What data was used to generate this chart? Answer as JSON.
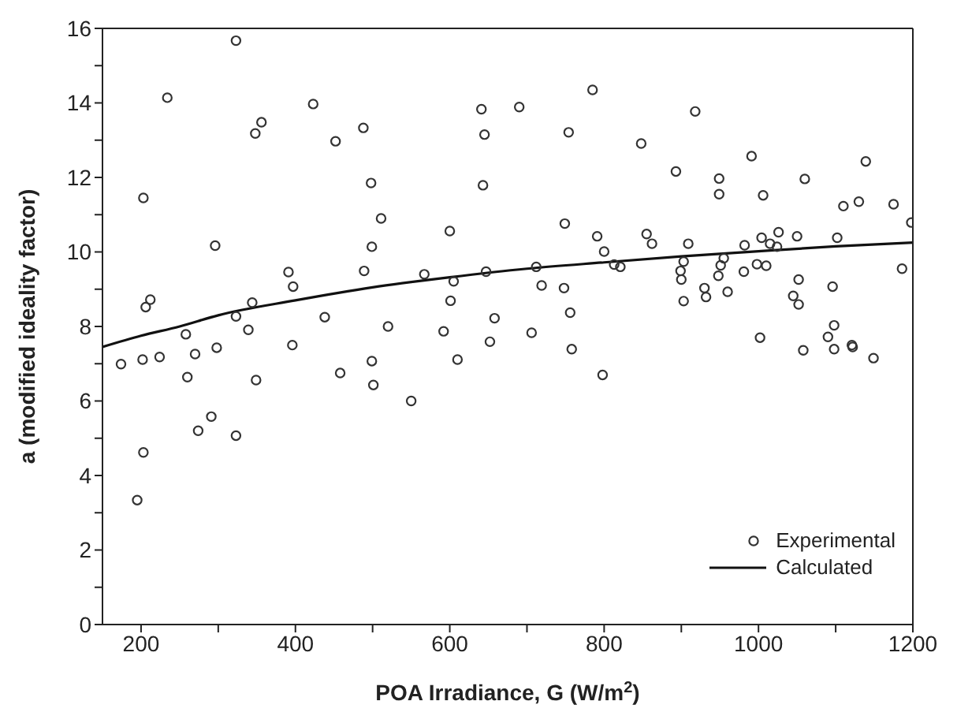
{
  "chart_data": {
    "type": "scatter",
    "xlabel": "POA Irradiance, G (W/m$^{2}$)",
    "ylabel": "a (modified ideality factor)",
    "xlim": [
      150,
      1200
    ],
    "ylim": [
      0,
      16
    ],
    "xticks": [
      200,
      {
        "value": 300,
        "label": null
      },
      400,
      {
        "value": 500,
        "label": null
      },
      600,
      {
        "value": 700,
        "label": null
      },
      800,
      {
        "value": 900,
        "label": null
      },
      1000,
      {
        "value": 1100,
        "label": null
      },
      1200
    ],
    "yticks": [
      0,
      {
        "value": 1,
        "label": null
      },
      2,
      {
        "value": 3,
        "label": null
      },
      4,
      {
        "value": 5,
        "label": null
      },
      6,
      {
        "value": 7,
        "label": null
      },
      8,
      {
        "value": 9,
        "label": null
      },
      10,
      {
        "value": 11,
        "label": null
      },
      12,
      {
        "value": 13,
        "label": null
      },
      14,
      {
        "value": 15,
        "label": null
      },
      16
    ],
    "grid": false,
    "legend": "bottom right",
    "series": [
      {
        "name": "Experimental",
        "marker": "circle",
        "color": "#333333",
        "x": [
          323,
          423,
          356,
          348,
          452,
          488,
          641,
          690,
          645,
          785,
          754,
          498,
          511,
          499,
          600,
          643,
          749,
          791,
          391,
          397,
          489,
          344,
          567,
          605,
          647,
          712,
          719,
          748,
          601,
          323,
          438,
          658,
          756,
          339,
          520,
          592,
          706,
          652,
          396,
          349,
          458,
          499,
          501,
          550,
          610,
          758,
          323,
          918,
          848,
          893,
          991,
          1139,
          949,
          949,
          1006,
          1060,
          1110,
          1130,
          1175,
          1198,
          800,
          813,
          821,
          855,
          862,
          909,
          903,
          899,
          900,
          903,
          930,
          932,
          948,
          951,
          955,
          960,
          981,
          982,
          998,
          1004,
          1010,
          1015,
          1024,
          1026,
          1050,
          1052,
          1045,
          1052,
          1096,
          1102,
          1186,
          1002,
          1090,
          1098,
          1121,
          798,
          1058,
          1098,
          1122,
          1149,
          234,
          203,
          296,
          206,
          212,
          258,
          174,
          202,
          224,
          270,
          298,
          260,
          291,
          274,
          203,
          195
        ],
        "values": [
          15.67,
          13.97,
          13.48,
          13.18,
          12.97,
          13.33,
          13.83,
          13.89,
          13.15,
          14.35,
          13.21,
          11.85,
          10.9,
          10.14,
          10.56,
          11.79,
          10.76,
          10.42,
          9.46,
          9.07,
          9.49,
          8.64,
          9.4,
          9.21,
          9.47,
          9.6,
          9.1,
          9.03,
          8.69,
          8.27,
          8.25,
          8.22,
          8.37,
          7.91,
          8.0,
          7.87,
          7.83,
          7.59,
          7.5,
          6.56,
          6.75,
          7.07,
          6.43,
          6.0,
          7.11,
          7.39,
          5.07,
          13.77,
          12.91,
          12.16,
          12.57,
          12.43,
          11.97,
          11.55,
          11.52,
          11.96,
          11.23,
          11.35,
          11.28,
          10.79,
          10.01,
          9.66,
          9.6,
          10.48,
          10.22,
          10.22,
          9.74,
          9.49,
          9.26,
          8.68,
          9.03,
          8.79,
          9.36,
          9.64,
          9.83,
          8.93,
          9.47,
          10.18,
          9.67,
          10.38,
          9.63,
          10.22,
          10.14,
          10.53,
          10.42,
          9.26,
          8.82,
          8.59,
          9.07,
          10.38,
          9.55,
          7.7,
          7.72,
          8.03,
          7.5,
          6.7,
          7.36,
          7.39,
          7.45,
          7.15,
          14.14,
          11.45,
          10.17,
          8.52,
          8.72,
          7.79,
          6.99,
          7.11,
          7.18,
          7.26,
          7.43,
          6.64,
          5.58,
          5.2,
          4.62,
          3.34
        ]
      },
      {
        "name": "Calculated",
        "type": "line",
        "marker": "none",
        "line_style": "solid",
        "color": "#111111",
        "x": [
          150,
          200,
          250,
          300,
          400,
          500,
          600,
          700,
          800,
          900,
          1000,
          1100,
          1200
        ],
        "values": [
          7.45,
          7.75,
          8.0,
          8.3,
          8.7,
          9.05,
          9.32,
          9.55,
          9.72,
          9.88,
          10.02,
          10.15,
          10.25
        ]
      }
    ]
  }
}
